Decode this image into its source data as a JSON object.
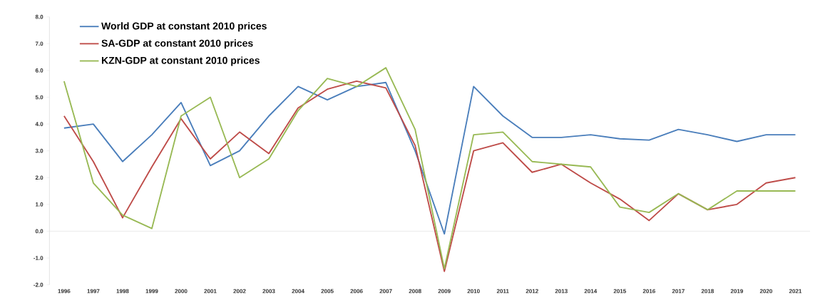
{
  "chart_data": {
    "type": "line",
    "categories": [
      "1996",
      "1997",
      "1998",
      "1999",
      "2000",
      "2001",
      "2002",
      "2003",
      "2004",
      "2005",
      "2006",
      "2007",
      "2008",
      "2009",
      "2010",
      "2011",
      "2012",
      "2013",
      "2014",
      "2015",
      "2016",
      "2017",
      "2018",
      "2019",
      "2020",
      "2021"
    ],
    "series": [
      {
        "name": "World GDP at constant 2010 prices",
        "color": "#4a7ebb",
        "values": [
          3.85,
          4.0,
          2.6,
          3.6,
          4.8,
          2.45,
          3.0,
          4.3,
          5.4,
          4.9,
          5.4,
          5.55,
          3.0,
          -0.1,
          5.4,
          4.3,
          3.5,
          3.5,
          3.6,
          3.45,
          3.4,
          3.8,
          3.6,
          3.35,
          3.6,
          3.6
        ]
      },
      {
        "name": "SA-GDP at constant 2010 prices",
        "color": "#be4b48",
        "values": [
          4.3,
          2.6,
          0.5,
          2.4,
          4.2,
          2.7,
          3.7,
          2.9,
          4.6,
          5.3,
          5.6,
          5.35,
          3.2,
          -1.5,
          3.0,
          3.3,
          2.2,
          2.5,
          1.8,
          1.2,
          0.4,
          1.4,
          0.8,
          1.0,
          1.8,
          2.0
        ]
      },
      {
        "name": "KZN-GDP at constant  2010 prices",
        "color": "#98b954",
        "values": [
          5.6,
          1.8,
          0.6,
          0.1,
          4.3,
          5.0,
          2.0,
          2.7,
          4.5,
          5.7,
          5.4,
          6.1,
          3.8,
          -1.4,
          3.6,
          3.7,
          2.6,
          2.5,
          2.4,
          0.9,
          0.7,
          1.4,
          0.8,
          1.5,
          1.5,
          1.5
        ]
      }
    ],
    "ylim": [
      -2,
      8
    ],
    "yticks": [
      {
        "value": -2,
        "label": "-2.0"
      },
      {
        "value": -1,
        "label": "-1.0"
      },
      {
        "value": 0,
        "label": "0.0"
      },
      {
        "value": 1,
        "label": "1.0"
      },
      {
        "value": 2,
        "label": "2.0"
      },
      {
        "value": 3,
        "label": "3.0"
      },
      {
        "value": 4,
        "label": "4.0"
      },
      {
        "value": 5,
        "label": "5.0"
      },
      {
        "value": 6,
        "label": "6.0"
      },
      {
        "value": 7,
        "label": "7.0"
      },
      {
        "value": 8,
        "label": "8.0"
      }
    ],
    "ref_lines": [
      {
        "axis": "y",
        "value": 0,
        "color": "#d9d9d9"
      }
    ],
    "legend": "top left",
    "grid": false,
    "marker": "none",
    "line_style": "solid"
  }
}
